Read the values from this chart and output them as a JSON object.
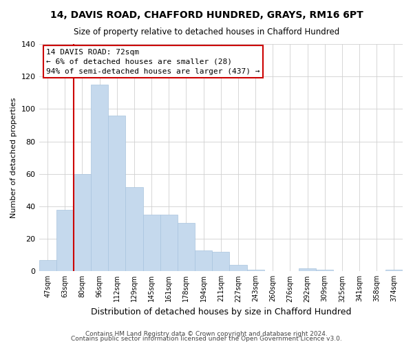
{
  "title1": "14, DAVIS ROAD, CHAFFORD HUNDRED, GRAYS, RM16 6PT",
  "title2": "Size of property relative to detached houses in Chafford Hundred",
  "xlabel": "Distribution of detached houses by size in Chafford Hundred",
  "ylabel": "Number of detached properties",
  "footer1": "Contains HM Land Registry data © Crown copyright and database right 2024.",
  "footer2": "Contains public sector information licensed under the Open Government Licence v3.0.",
  "bar_labels": [
    "47sqm",
    "63sqm",
    "80sqm",
    "96sqm",
    "112sqm",
    "129sqm",
    "145sqm",
    "161sqm",
    "178sqm",
    "194sqm",
    "211sqm",
    "227sqm",
    "243sqm",
    "260sqm",
    "276sqm",
    "292sqm",
    "309sqm",
    "325sqm",
    "341sqm",
    "358sqm",
    "374sqm"
  ],
  "bar_values": [
    7,
    38,
    60,
    115,
    96,
    52,
    35,
    35,
    30,
    13,
    12,
    4,
    1,
    0,
    0,
    2,
    1,
    0,
    0,
    0,
    1
  ],
  "bar_color": "#c5d9ed",
  "bar_edge_color": "#a8c4de",
  "ylim": [
    0,
    140
  ],
  "yticks": [
    0,
    20,
    40,
    60,
    80,
    100,
    120,
    140
  ],
  "annotation_title": "14 DAVIS ROAD: 72sqm",
  "annotation_line1": "← 6% of detached houses are smaller (28)",
  "annotation_line2": "94% of semi-detached houses are larger (437) →",
  "annotation_box_color": "#ffffff",
  "annotation_border_color": "#cc0000",
  "property_line_color": "#cc0000",
  "background_color": "#ffffff",
  "grid_color": "#d0d0d0"
}
